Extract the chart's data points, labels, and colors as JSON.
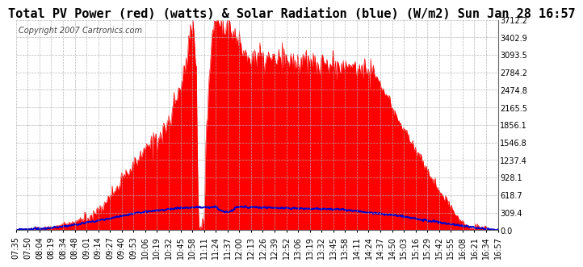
{
  "title": "Total PV Power (red) (watts) & Solar Radiation (blue) (W/m2) Sun Jan 28 16:57",
  "copyright": "Copyright 2007 Cartronics.com",
  "background_color": "#ffffff",
  "plot_bg_color": "#ffffff",
  "grid_color": "#b0b0b0",
  "yticks": [
    0.0,
    309.4,
    618.7,
    928.1,
    1237.4,
    1546.8,
    1856.1,
    2165.5,
    2474.8,
    2784.2,
    3093.5,
    3402.9,
    3712.2
  ],
  "ylim": [
    0,
    3712.2
  ],
  "x_labels": [
    "07:35",
    "07:50",
    "08:04",
    "08:19",
    "08:34",
    "08:48",
    "09:01",
    "09:14",
    "09:27",
    "09:40",
    "09:53",
    "10:06",
    "10:19",
    "10:32",
    "10:45",
    "10:58",
    "11:11",
    "11:24",
    "11:37",
    "12:00",
    "12:13",
    "12:26",
    "12:39",
    "12:52",
    "13:06",
    "13:19",
    "13:32",
    "13:45",
    "13:58",
    "14:11",
    "14:24",
    "14:37",
    "14:50",
    "15:03",
    "15:16",
    "15:29",
    "15:42",
    "15:55",
    "16:08",
    "16:21",
    "16:34",
    "16:57"
  ],
  "pv_color": "#ff0000",
  "solar_color": "#0000cc",
  "title_fontsize": 11,
  "copyright_fontsize": 7,
  "tick_fontsize": 7
}
